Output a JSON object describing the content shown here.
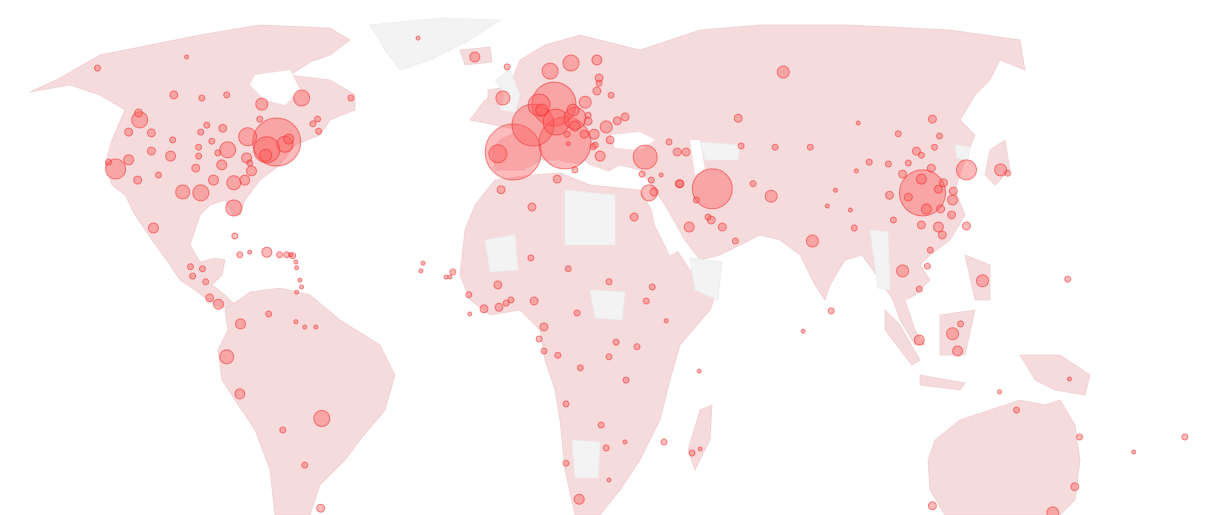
{
  "map": {
    "type": "bubble-map",
    "colors": {
      "land": "#f5dbdc",
      "no_data": "#f3f3f3",
      "bubble_fill": "#ff5a5a",
      "bubble_stroke": "#f02828"
    },
    "bubble_fields": [
      "lon",
      "lat",
      "relative_magnitude"
    ],
    "bubbles": [
      [
        -70.5,
        42.3,
        576
      ],
      [
        -73.3,
        40.5,
        169
      ],
      [
        -68.2,
        41.8,
        64
      ],
      [
        -67.1,
        43,
        25
      ],
      [
        -73.6,
        39.3,
        36
      ],
      [
        -78.7,
        43.5,
        81
      ],
      [
        -74.7,
        51.8,
        36
      ],
      [
        -63.5,
        53.7,
        64
      ],
      [
        -99.5,
        54.7,
        16
      ],
      [
        -91.6,
        53.7,
        9
      ],
      [
        -84.6,
        54.7,
        9
      ],
      [
        -109.1,
        47.4,
        64
      ],
      [
        -109.4,
        49,
        16
      ],
      [
        -112.2,
        44.6,
        16
      ],
      [
        -105.8,
        44.4,
        16
      ],
      [
        -99.8,
        42.8,
        9
      ],
      [
        -100.4,
        39.1,
        25
      ],
      [
        -105.8,
        40.2,
        16
      ],
      [
        -112.2,
        38.3,
        25
      ],
      [
        -115.9,
        36.3,
        100
      ],
      [
        -117.9,
        37.8,
        9
      ],
      [
        -109.7,
        33.9,
        16
      ],
      [
        -103.8,
        35,
        9
      ],
      [
        -91.9,
        31.1,
        64
      ],
      [
        -97,
        31.3,
        49
      ],
      [
        -82.6,
        28,
        64
      ],
      [
        -84.3,
        40.5,
        64
      ],
      [
        -79,
        38.7,
        25
      ],
      [
        -82.6,
        33.3,
        49
      ],
      [
        -88.3,
        33.9,
        25
      ],
      [
        -86,
        37.2,
        25
      ],
      [
        -87.1,
        39.8,
        9
      ],
      [
        -92.5,
        41.1,
        9
      ],
      [
        -92.5,
        39.1,
        9
      ],
      [
        -93.3,
        36.5,
        16
      ],
      [
        -90.2,
        46.2,
        9
      ],
      [
        -85.7,
        45.5,
        16
      ],
      [
        -88.8,
        42.5,
        9
      ],
      [
        -91.9,
        44.6,
        9
      ],
      [
        -78.1,
        37.6,
        9
      ],
      [
        -77.6,
        35.9,
        25
      ],
      [
        -79.5,
        33.9,
        25
      ],
      [
        -75.3,
        47.6,
        9
      ],
      [
        -60.3,
        46.5,
        9
      ],
      [
        -58.7,
        44.8,
        9
      ],
      [
        -59,
        47.6,
        9
      ],
      [
        -49.6,
        53.7,
        9
      ],
      [
        -121,
        63.3,
        9
      ],
      [
        -95.9,
        67,
        4
      ],
      [
        -105.2,
        24,
        25
      ],
      [
        -30.7,
        74.3,
        4
      ],
      [
        -73.3,
        19.2,
        25
      ],
      [
        -80.9,
        18.7,
        9
      ],
      [
        -82.3,
        22.4,
        9
      ],
      [
        -78.1,
        19.2,
        4
      ],
      [
        -69.7,
        18.7,
        9
      ],
      [
        -67.7,
        18.7,
        9
      ],
      [
        -66.6,
        18.7,
        4
      ],
      [
        -66,
        18.5,
        9
      ],
      [
        -65.1,
        17.3,
        4
      ],
      [
        -64.9,
        16.2,
        4
      ],
      [
        -64,
        13.8,
        4
      ],
      [
        -63.5,
        12.5,
        4
      ],
      [
        -64.9,
        11.5,
        4
      ],
      [
        -94.8,
        16.4,
        9
      ],
      [
        -91.4,
        16,
        9
      ],
      [
        -94.2,
        14.6,
        9
      ],
      [
        -90.5,
        13.5,
        9
      ],
      [
        -89.4,
        10.4,
        16
      ],
      [
        -86.9,
        9.2,
        25
      ],
      [
        -80.7,
        5.4,
        25
      ],
      [
        -72.8,
        7.3,
        9
      ],
      [
        -65.1,
        5.8,
        4
      ],
      [
        -62.6,
        4.8,
        4
      ],
      [
        -59.5,
        4.8,
        4
      ],
      [
        -84.6,
        -0.9,
        49
      ],
      [
        -80.9,
        -7.9,
        25
      ],
      [
        -57.8,
        -12.7,
        64
      ],
      [
        -68.8,
        -15,
        9
      ],
      [
        -62.6,
        -22.1,
        9
      ],
      [
        -58.1,
        -31.1,
        16
      ],
      [
        -20.9,
        15.4,
        9
      ],
      [
        -22.8,
        14.4,
        4
      ],
      [
        -21.7,
        14.4,
        4
      ],
      [
        -29.3,
        17.1,
        4
      ],
      [
        -29.9,
        15.6,
        4
      ],
      [
        -16.4,
        11,
        9
      ],
      [
        -16.1,
        7.3,
        4
      ],
      [
        -8.2,
        12.9,
        16
      ],
      [
        -12.1,
        8.3,
        16
      ],
      [
        -7.9,
        8.6,
        16
      ],
      [
        -5.9,
        9.4,
        9
      ],
      [
        -4.5,
        10,
        9
      ],
      [
        2,
        9.8,
        16
      ],
      [
        1.1,
        18.1,
        9
      ],
      [
        11.6,
        16,
        9
      ],
      [
        23.1,
        13.5,
        9
      ],
      [
        33.6,
        9.8,
        9
      ],
      [
        35.3,
        12.5,
        9
      ],
      [
        39.2,
        6,
        4
      ],
      [
        4.8,
        4.8,
        16
      ],
      [
        3.4,
        2.5,
        9
      ],
      [
        4.8,
        0.2,
        9
      ],
      [
        8.7,
        -0.6,
        9
      ],
      [
        14.1,
        7.5,
        9
      ],
      [
        15,
        -3,
        9
      ],
      [
        25.1,
        1.9,
        9
      ],
      [
        31,
        1,
        9
      ],
      [
        23.1,
        -0.9,
        9
      ],
      [
        27.9,
        -5.3,
        9
      ],
      [
        11,
        -9.8,
        9
      ],
      [
        20.9,
        -14,
        9
      ],
      [
        22.3,
        -18.6,
        9
      ],
      [
        11,
        -21.7,
        9
      ],
      [
        27.6,
        -17.4,
        4
      ],
      [
        38.6,
        -17.4,
        9
      ],
      [
        46.5,
        -19.6,
        9
      ],
      [
        48.5,
        -3.6,
        4
      ],
      [
        48.8,
        -18.8,
        4
      ],
      [
        23.1,
        -25.2,
        4
      ],
      [
        14.7,
        -29.2,
        25
      ],
      [
        -7.3,
        31.8,
        16
      ],
      [
        1.4,
        28.2,
        16
      ],
      [
        8.5,
        34.1,
        16
      ],
      [
        30.2,
        26.2,
        16
      ],
      [
        -14.7,
        67,
        25
      ],
      [
        -5.6,
        63.7,
        9
      ],
      [
        6.5,
        62.3,
        64
      ],
      [
        12.4,
        65,
        64
      ],
      [
        19.7,
        66,
        25
      ],
      [
        20.3,
        60,
        16
      ],
      [
        20.3,
        58.4,
        9
      ],
      [
        19.7,
        55.9,
        16
      ],
      [
        -6.8,
        53.7,
        49
      ],
      [
        7.6,
        51.8,
        484
      ],
      [
        3.4,
        51.5,
        121
      ],
      [
        4.2,
        49.9,
        36
      ],
      [
        8.2,
        46.9,
        169
      ],
      [
        1.7,
        46.2,
        441
      ],
      [
        13.5,
        47.8,
        121
      ],
      [
        13,
        49.9,
        36
      ],
      [
        16.4,
        52.4,
        36
      ],
      [
        23.7,
        54.6,
        9
      ],
      [
        10.7,
        42.1,
        676
      ],
      [
        -3.9,
        40,
        784
      ],
      [
        -8.2,
        39.6,
        81
      ],
      [
        13.5,
        46,
        25
      ],
      [
        16.1,
        44.1,
        16
      ],
      [
        11.3,
        44.1,
        9
      ],
      [
        18.9,
        44.1,
        25
      ],
      [
        17.2,
        47.1,
        16
      ],
      [
        17.2,
        48.5,
        9
      ],
      [
        25.4,
        47.2,
        16
      ],
      [
        27.6,
        48.1,
        16
      ],
      [
        22.3,
        45.8,
        36
      ],
      [
        23.4,
        42.8,
        16
      ],
      [
        19.2,
        41.6,
        9
      ],
      [
        18.6,
        41.2,
        9
      ],
      [
        20.6,
        39.1,
        25
      ],
      [
        13.5,
        36.1,
        9
      ],
      [
        11.6,
        41.9,
        4
      ],
      [
        33.3,
        38.9,
        144
      ],
      [
        32.4,
        35.2,
        9
      ],
      [
        35,
        33.9,
        9
      ],
      [
        34.4,
        31.1,
        64
      ],
      [
        35.8,
        31.3,
        16
      ],
      [
        37.8,
        35,
        4
      ],
      [
        42.9,
        33.1,
        16
      ],
      [
        40,
        42.3,
        9
      ],
      [
        42.3,
        40,
        16
      ],
      [
        44.8,
        40,
        16
      ],
      [
        72.2,
        62,
        36
      ],
      [
        59.5,
        47.8,
        16
      ],
      [
        52.2,
        32,
        400
      ],
      [
        43.1,
        33.1,
        16
      ],
      [
        47.7,
        29.6,
        9
      ],
      [
        51,
        26.2,
        9
      ],
      [
        51.9,
        25.6,
        16
      ],
      [
        55,
        24.2,
        16
      ],
      [
        45.7,
        24.2,
        25
      ],
      [
        58.7,
        21.4,
        9
      ],
      [
        63.7,
        33.1,
        9
      ],
      [
        68.8,
        30.4,
        36
      ],
      [
        60.3,
        41.4,
        9
      ],
      [
        69.9,
        41.1,
        9
      ],
      [
        80.4,
        21.4,
        36
      ],
      [
        84.6,
        28.4,
        4
      ],
      [
        91.1,
        27.6,
        4
      ],
      [
        92.2,
        24,
        9
      ],
      [
        111.4,
        31.1,
        529
      ],
      [
        111.1,
        34.1,
        25
      ],
      [
        115.9,
        31.9,
        16
      ],
      [
        107.4,
        30.2,
        16
      ],
      [
        112.5,
        27.8,
        25
      ],
      [
        116.5,
        27.8,
        16
      ],
      [
        117.3,
        33.3,
        16
      ],
      [
        120.1,
        31.5,
        16
      ],
      [
        119.9,
        29.6,
        25
      ],
      [
        119.6,
        26.6,
        16
      ],
      [
        115.9,
        24.2,
        25
      ],
      [
        117,
        22.6,
        16
      ],
      [
        111.1,
        24.6,
        16
      ],
      [
        113.6,
        19.6,
        9
      ],
      [
        103.2,
        25.6,
        9
      ],
      [
        102.1,
        30.6,
        16
      ],
      [
        105.8,
        35.2,
        16
      ],
      [
        107.4,
        37.6,
        9
      ],
      [
        109.7,
        40.2,
        16
      ],
      [
        111.1,
        39.3,
        9
      ],
      [
        113.9,
        36.5,
        16
      ],
      [
        114.8,
        41.1,
        9
      ],
      [
        116.2,
        43.7,
        9
      ],
      [
        114.2,
        47.6,
        16
      ],
      [
        104.6,
        44.2,
        9
      ],
      [
        101.8,
        37.4,
        9
      ],
      [
        96.4,
        37.8,
        9
      ],
      [
        93.3,
        46.7,
        4
      ],
      [
        92.8,
        35.9,
        4
      ],
      [
        86.9,
        31.7,
        4
      ],
      [
        79.8,
        41.1,
        9
      ],
      [
        123.8,
        36.1,
        100
      ],
      [
        133.4,
        36.1,
        36
      ],
      [
        135.4,
        35.4,
        9
      ],
      [
        123.8,
        24.4,
        16
      ],
      [
        112.8,
        16.5,
        9
      ],
      [
        105.8,
        15.6,
        36
      ],
      [
        110.5,
        12.1,
        9
      ],
      [
        128.3,
        13.7,
        36
      ],
      [
        152.3,
        14,
        9
      ],
      [
        85.7,
        7.9,
        9
      ],
      [
        77.8,
        4,
        4
      ],
      [
        110.5,
        2.3,
        25
      ],
      [
        122.1,
        5.4,
        9
      ],
      [
        119.9,
        3.5,
        36
      ],
      [
        121.3,
        0.2,
        25
      ],
      [
        133.1,
        -7.5,
        4
      ],
      [
        152.8,
        -5.1,
        4
      ],
      [
        137.9,
        -11,
        9
      ],
      [
        155.7,
        -16.4,
        9
      ],
      [
        185.3,
        -16.4,
        9
      ],
      [
        170.9,
        -19.4,
        4
      ],
      [
        154.3,
        -26.6,
        16
      ],
      [
        114.2,
        -30.6,
        16
      ],
      [
        148.1,
        -32.1,
        36
      ]
    ]
  }
}
